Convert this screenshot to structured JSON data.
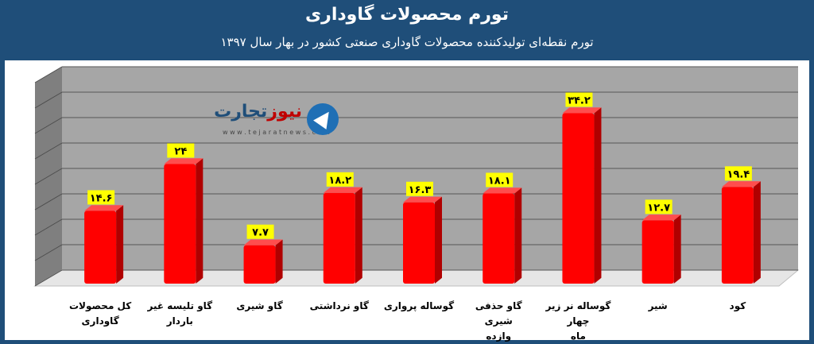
{
  "header": {
    "title": "تورم محصولات گاوداری",
    "subtitle": "تورم نقطه‌ای تولیدکننده محصولات  گاوداری صنعتی کشور در بهار سال ۱۳۹۷"
  },
  "logo": {
    "name_main": "تجارت",
    "name_accent": "نیوز",
    "url": "w w w . t e j a r a t n e w s . c o m",
    "icon": "arrow-logo-icon"
  },
  "colors": {
    "header_bg": "#1f4e79",
    "bar_fill": "#ff0000",
    "bar_side": "#b00000",
    "label_bg": "#ffff00",
    "plot_bg": "#a6a6a6",
    "wall_side": "#7f7f7f",
    "floor": "#ffffff"
  },
  "chart_data": {
    "type": "bar",
    "title": "تورم محصولات گاوداری",
    "subtitle": "تورم نقطه‌ای تولیدکننده محصولات  گاوداری صنعتی کشور در بهار سال ۱۳۹۷",
    "categories": [
      [
        "کل محصولات",
        "گاوداری"
      ],
      [
        "گاو تلیسه غیر",
        "باردار"
      ],
      [
        "گاو شیری"
      ],
      [
        "گاو نرداشتی"
      ],
      [
        "گوساله پرواری"
      ],
      [
        "گاو حذفی شیری",
        "وازده"
      ],
      [
        "گوساله نر زیر چهار",
        "ماه"
      ],
      [
        "شیر"
      ],
      [
        "کود"
      ]
    ],
    "values": [
      14.6,
      24,
      7.7,
      18.2,
      16.3,
      18.1,
      34.2,
      12.7,
      19.4
    ],
    "value_labels": [
      "۱۴.۶",
      "۲۴",
      "۷.۷",
      "۱۸.۲",
      "۱۶.۳",
      "۱۸.۱",
      "۳۴.۲",
      "۱۲.۷",
      "۱۹.۴"
    ],
    "ylim": [
      0,
      40
    ],
    "gridlines": true,
    "legend": "none"
  }
}
